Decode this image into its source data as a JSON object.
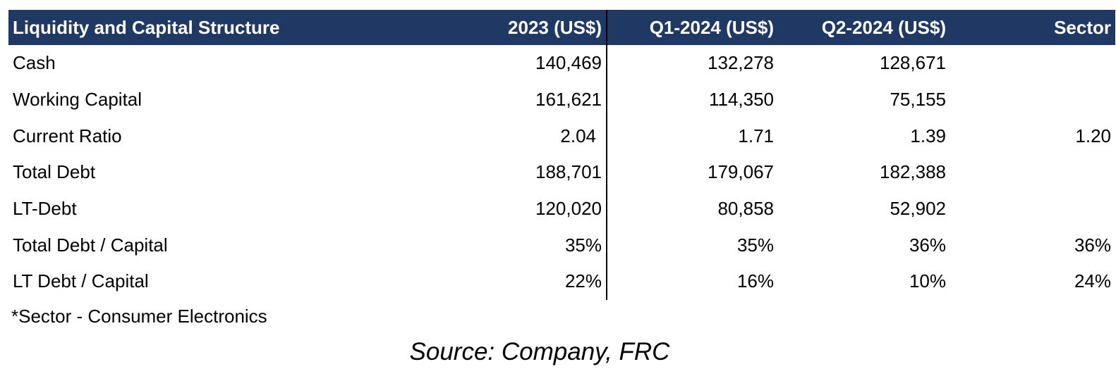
{
  "table": {
    "headers": {
      "label": "Liquidity and Capital Structure",
      "y2023": "2023 (US$)",
      "q1_2024": "Q1-2024 (US$)",
      "q2_2024": "Q2-2024 (US$)",
      "sector": "Sector"
    },
    "rows": [
      {
        "label": "Cash",
        "y2023": "140,469",
        "q1_2024": "132,278",
        "q2_2024": "128,671",
        "sector": ""
      },
      {
        "label": "Working Capital",
        "y2023": "161,621",
        "q1_2024": "114,350",
        "q2_2024": "75,155",
        "sector": ""
      },
      {
        "label": "Current Ratio",
        "y2023": "2.04",
        "q1_2024": "1.71",
        "q2_2024": "1.39",
        "sector": "1.20"
      },
      {
        "label": "Total Debt",
        "y2023": "188,701",
        "q1_2024": "179,067",
        "q2_2024": "182,388",
        "sector": ""
      },
      {
        "label": "LT-Debt",
        "y2023": "120,020",
        "q1_2024": "80,858",
        "q2_2024": "52,902",
        "sector": ""
      },
      {
        "label": "Total Debt / Capital",
        "y2023": "35%",
        "q1_2024": "35%",
        "q2_2024": "36%",
        "sector": "36%"
      },
      {
        "label": "LT Debt / Capital",
        "y2023": "22%",
        "q1_2024": "16%",
        "q2_2024": "10%",
        "sector": "24%"
      }
    ]
  },
  "footnote": "*Sector - Consumer Electronics",
  "source": "Source: Company, FRC",
  "colors": {
    "header_bg": "#1f3864",
    "header_text": "#ffffff"
  }
}
